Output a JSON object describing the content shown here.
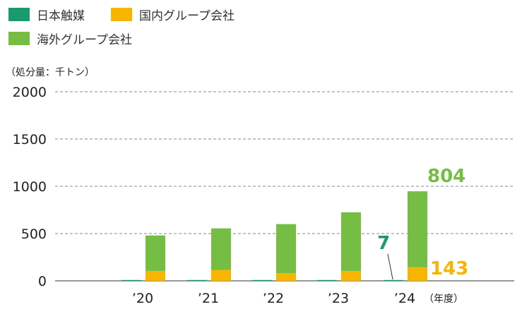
{
  "chart_data": {
    "type": "bar",
    "stacked": true,
    "unit_label": "（処分量：千トン）",
    "x_unit_label": "（年度）",
    "categories": [
      "’20",
      "’21",
      "’22",
      "’23",
      "’24"
    ],
    "ylim": [
      0,
      2000
    ],
    "yticks": [
      0,
      500,
      1000,
      1500,
      2000
    ],
    "grid": true,
    "legend_position": "top-left",
    "series": [
      {
        "name": "日本触媒",
        "color": "#1a9b6c",
        "values": [
          7,
          7,
          7,
          7,
          7
        ]
      },
      {
        "name": "国内グループ会社",
        "color": "#f7b500",
        "values": [
          105,
          115,
          80,
          105,
          143
        ]
      },
      {
        "name": "海外グループ会社",
        "color": "#76be43",
        "values": [
          375,
          440,
          520,
          620,
          804
        ]
      }
    ],
    "annotations": [
      {
        "text": "804",
        "series": "海外グループ会社",
        "category": "’24",
        "color": "#76be43"
      },
      {
        "text": "143",
        "series": "国内グループ会社",
        "category": "’24",
        "color": "#f7b500"
      },
      {
        "text": "7",
        "series": "日本触媒",
        "category": "’24",
        "color": "#1a9b6c"
      }
    ]
  }
}
